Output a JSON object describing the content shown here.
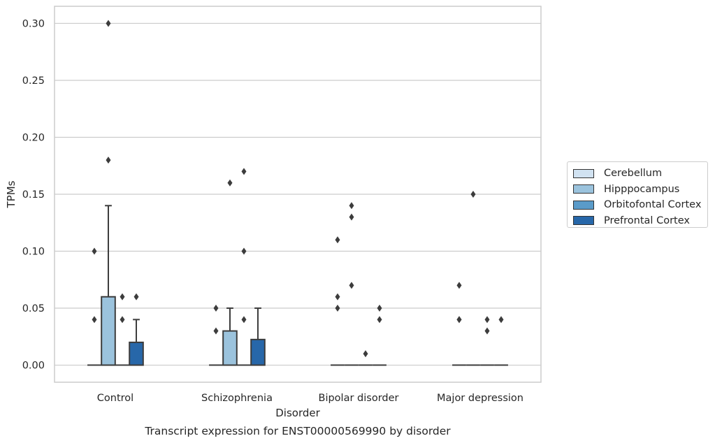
{
  "chart_data": {
    "type": "box",
    "title": "Transcript expression for ENST00000569990 by disorder",
    "xlabel": "Disorder",
    "ylabel": "TPMs",
    "ylim": [
      -0.015,
      0.315
    ],
    "yticks": [
      "0.00",
      "0.05",
      "0.10",
      "0.15",
      "0.20",
      "0.25",
      "0.30"
    ],
    "ytick_values": [
      0,
      0.05,
      0.1,
      0.15,
      0.2,
      0.25,
      0.3
    ],
    "grid": "horizontal",
    "legend_position": "right",
    "categories": [
      "Control",
      "Schizophrenia",
      "Bipolar disorder",
      "Major depression"
    ],
    "series": [
      {
        "name": "Cerebellum",
        "color": "#d1e2f1",
        "boxes": [
          {
            "q1": 0,
            "median": 0,
            "q3": 0,
            "whisker_low": 0,
            "whisker_high": 0,
            "outliers": [
              0.04,
              0.1
            ]
          },
          {
            "q1": 0,
            "median": 0,
            "q3": 0,
            "whisker_low": 0,
            "whisker_high": 0,
            "outliers": [
              0.03,
              0.05
            ]
          },
          {
            "q1": 0,
            "median": 0,
            "q3": 0,
            "whisker_low": 0,
            "whisker_high": 0,
            "outliers": [
              0.05,
              0.06,
              0.11
            ]
          },
          {
            "q1": 0,
            "median": 0,
            "q3": 0,
            "whisker_low": 0,
            "whisker_high": 0,
            "outliers": [
              0.04,
              0.04,
              0.07
            ]
          }
        ]
      },
      {
        "name": "Hipppocampus",
        "color": "#9bc3dd",
        "boxes": [
          {
            "q1": 0,
            "median": 0,
            "q3": 0.06,
            "whisker_low": 0,
            "whisker_high": 0.14,
            "outliers": [
              0.18,
              0.3
            ]
          },
          {
            "q1": 0,
            "median": 0,
            "q3": 0.03,
            "whisker_low": 0,
            "whisker_high": 0.05,
            "outliers": [
              0.16
            ]
          },
          {
            "q1": 0,
            "median": 0,
            "q3": 0,
            "whisker_low": 0,
            "whisker_high": 0,
            "outliers": [
              0.07,
              0.13,
              0.14
            ]
          },
          {
            "q1": 0,
            "median": 0,
            "q3": 0,
            "whisker_low": 0,
            "whisker_high": 0,
            "outliers": [
              0.15
            ]
          }
        ]
      },
      {
        "name": "Orbitofontal Cortex",
        "color": "#5a9bc9",
        "boxes": [
          {
            "q1": 0,
            "median": 0,
            "q3": 0,
            "whisker_low": 0,
            "whisker_high": 0,
            "outliers": [
              0.04,
              0.06
            ]
          },
          {
            "q1": 0,
            "median": 0,
            "q3": 0,
            "whisker_low": 0,
            "whisker_high": 0,
            "outliers": [
              0.04,
              0.1,
              0.17
            ]
          },
          {
            "q1": 0,
            "median": 0,
            "q3": 0,
            "whisker_low": 0,
            "whisker_high": 0,
            "outliers": [
              0.01
            ]
          },
          {
            "q1": 0,
            "median": 0,
            "q3": 0,
            "whisker_low": 0,
            "whisker_high": 0,
            "outliers": [
              0.03,
              0.04
            ]
          }
        ]
      },
      {
        "name": "Prefrontal Cortex",
        "color": "#2767a9",
        "boxes": [
          {
            "q1": 0,
            "median": 0,
            "q3": 0.02,
            "whisker_low": 0,
            "whisker_high": 0.04,
            "outliers": [
              0.06
            ]
          },
          {
            "q1": 0,
            "median": 0,
            "q3": 0.0225,
            "whisker_low": 0,
            "whisker_high": 0.05,
            "outliers": []
          },
          {
            "q1": 0,
            "median": 0,
            "q3": 0,
            "whisker_low": 0,
            "whisker_high": 0,
            "outliers": [
              0.04,
              0.05
            ]
          },
          {
            "q1": 0,
            "median": 0,
            "q3": 0,
            "whisker_low": 0,
            "whisker_high": 0,
            "outliers": [
              0.04
            ]
          }
        ]
      }
    ]
  }
}
